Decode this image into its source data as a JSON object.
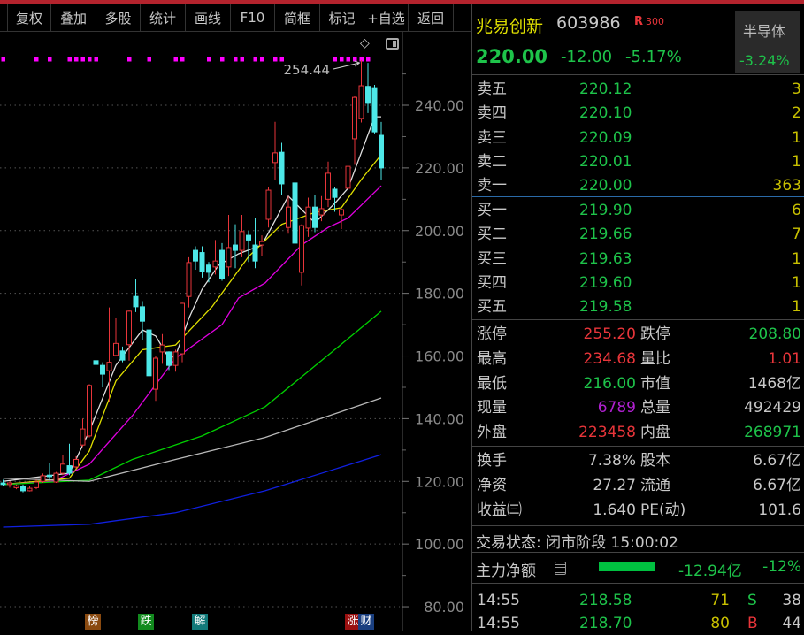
{
  "toolbar": [
    "复权",
    "叠加",
    "多股",
    "统计",
    "画线",
    "F10",
    "简框",
    "标记",
    "+自选",
    "返回"
  ],
  "stock": {
    "name": "兆易创新",
    "code": "603986",
    "tag_r": "R",
    "tag_300": "300",
    "price": "220.00",
    "change": "-12.00",
    "pct": "-5.17%",
    "sector": "半导体",
    "sector_pct": "-3.24%"
  },
  "sell": [
    {
      "label": "卖五",
      "price": "220.12",
      "vol": "3"
    },
    {
      "label": "卖四",
      "price": "220.10",
      "vol": "2"
    },
    {
      "label": "卖三",
      "price": "220.09",
      "vol": "1"
    },
    {
      "label": "卖二",
      "price": "220.01",
      "vol": "1"
    },
    {
      "label": "卖一",
      "price": "220.00",
      "vol": "363"
    }
  ],
  "buy": [
    {
      "label": "买一",
      "price": "219.90",
      "vol": "6"
    },
    {
      "label": "买二",
      "price": "219.66",
      "vol": "7"
    },
    {
      "label": "买三",
      "price": "219.63",
      "vol": "1"
    },
    {
      "label": "买四",
      "price": "219.60",
      "vol": "1"
    },
    {
      "label": "买五",
      "price": "219.58",
      "vol": "1"
    }
  ],
  "stats": [
    {
      "l1": "涨停",
      "v1": "255.20",
      "c1": "r",
      "l2": "跌停",
      "v2": "208.80",
      "c2": "g"
    },
    {
      "l1": "最高",
      "v1": "234.68",
      "c1": "r",
      "l2": "量比",
      "v2": "1.01",
      "c2": "r"
    },
    {
      "l1": "最低",
      "v1": "216.00",
      "c1": "g",
      "l2": "市值",
      "v2": "1468亿",
      "c2": "w"
    },
    {
      "l1": "现量",
      "v1": "6789",
      "c1": "p",
      "l2": "总量",
      "v2": "492429",
      "c2": "w"
    },
    {
      "l1": "外盘",
      "v1": "223458",
      "c1": "r",
      "l2": "内盘",
      "v2": "268971",
      "c2": "g"
    }
  ],
  "stats2": [
    {
      "l1": "换手",
      "v1": "7.38%",
      "l2": "股本",
      "v2": "6.67亿"
    },
    {
      "l1": "净资",
      "v1": "27.27",
      "l2": "流通",
      "v2": "6.67亿"
    },
    {
      "l1": "收益㈢",
      "v1": "1.640",
      "l2": "PE(动)",
      "v2": "101.6"
    }
  ],
  "status": "交易状态: 闭市阶段 15:00:02",
  "main_flow": {
    "label": "主力净额",
    "amount": "-12.94亿",
    "pct": "-12%",
    "bar_fraction": 0.12
  },
  "trades": [
    {
      "time": "14:55",
      "price": "218.58",
      "vol": "71",
      "side": "S",
      "count": "38"
    },
    {
      "time": "14:55",
      "price": "218.70",
      "vol": "80",
      "side": "B",
      "count": "44"
    }
  ],
  "badges": [
    {
      "text": "榜",
      "color": "#8a4a10"
    },
    {
      "text": "跌",
      "color": "#128a1e"
    },
    {
      "text": "解",
      "color": "#127a7a"
    },
    {
      "text": "涨",
      "color": "#9a1010"
    },
    {
      "text": "财",
      "color": "#1a3f80"
    }
  ],
  "colors": {
    "up": "#e8353a",
    "down": "#4de8e8",
    "ma5": "#e0e0e0",
    "ma10": "#e0e000",
    "ma20": "#e000e0",
    "ma60": "#00d000",
    "ma120": "#b8b8b8",
    "ma250": "#1020e0",
    "marker": "#ff00ff"
  },
  "chart_data": {
    "type": "candlestick",
    "y_ticks": [
      "240.00",
      "220.00",
      "200.00",
      "180.00",
      "160.00",
      "140.00",
      "120.00",
      "100.00",
      "80.00"
    ],
    "ylim": [
      80,
      240
    ],
    "high_label": "254.44",
    "candles": [
      [
        119.5,
        120.5,
        118.5,
        119
      ],
      [
        119,
        120,
        118,
        119.5
      ],
      [
        118,
        119,
        117.5,
        118.6
      ],
      [
        118.5,
        119,
        116.5,
        117
      ],
      [
        117,
        118.5,
        116.8,
        117.8
      ],
      [
        118,
        120.5,
        117.5,
        119.8
      ],
      [
        120,
        122.5,
        119.5,
        121.8
      ],
      [
        122,
        126,
        120.5,
        121.5
      ],
      [
        119.8,
        123,
        119.5,
        122.6
      ],
      [
        122.6,
        128.5,
        122,
        125.5
      ],
      [
        125,
        132,
        122,
        122.6
      ],
      [
        124.6,
        128,
        124,
        127
      ],
      [
        131.6,
        140,
        131,
        136.7
      ],
      [
        134.5,
        151,
        134,
        150.6
      ],
      [
        158.5,
        172.5,
        148.5,
        157.3
      ],
      [
        157,
        158,
        150,
        154.2
      ],
      [
        155.3,
        175.5,
        145.5,
        158
      ],
      [
        160.2,
        172,
        160,
        164
      ],
      [
        161.6,
        163,
        158,
        158.7
      ],
      [
        163.6,
        174.5,
        158.5,
        174.3
      ],
      [
        179,
        184.5,
        174,
        175.7
      ],
      [
        175.7,
        177.5,
        165,
        171.1
      ],
      [
        168.3,
        168.5,
        153.7,
        153.7
      ],
      [
        149.4,
        160,
        145.7,
        159.3
      ],
      [
        161.3,
        167,
        157.5,
        163.5
      ],
      [
        161.3,
        161.5,
        155.5,
        157
      ],
      [
        157,
        162,
        155,
        161.3
      ],
      [
        160.7,
        177,
        158,
        176.8
      ],
      [
        179,
        191.5,
        175.5,
        189.8
      ],
      [
        193.7,
        195,
        187.5,
        190.3
      ],
      [
        193,
        195,
        185,
        187
      ],
      [
        189,
        190,
        183.5,
        186.7
      ],
      [
        188.4,
        197,
        186,
        190.3
      ],
      [
        193.7,
        196,
        184,
        184.7
      ],
      [
        188.4,
        205,
        185.5,
        194.6
      ],
      [
        195.4,
        202,
        188,
        193.7
      ],
      [
        193.7,
        205,
        191.5,
        199.7
      ],
      [
        198.5,
        200,
        190,
        197
      ],
      [
        195.4,
        204,
        188,
        190.3
      ],
      [
        195.4,
        198.5,
        192,
        196.5
      ],
      [
        203.6,
        214,
        201,
        212.9
      ],
      [
        221.7,
        234.7,
        216,
        224.8
      ],
      [
        225,
        228,
        211.5,
        214.9
      ],
      [
        201,
        211,
        199,
        207.5
      ],
      [
        215.2,
        217.5,
        190.5,
        196
      ],
      [
        186.7,
        202,
        182.5,
        201.6
      ],
      [
        200.8,
        210.5,
        198,
        207.5
      ],
      [
        207.5,
        211.5,
        199.5,
        201
      ],
      [
        205,
        211,
        203,
        207
      ],
      [
        210,
        222,
        207.5,
        218.3
      ],
      [
        213.2,
        214,
        206,
        210.6
      ],
      [
        205,
        207,
        200.5,
        206.7
      ],
      [
        213.5,
        223,
        212.5,
        220.5
      ],
      [
        229.3,
        243,
        221,
        242.5
      ],
      [
        235.8,
        254.44,
        234.5,
        246.2
      ],
      [
        246,
        253.5,
        237.5,
        240.6
      ],
      [
        245.6,
        246.5,
        231,
        231.5
      ],
      [
        230.4,
        234.68,
        216,
        220
      ]
    ],
    "ma_lines": [
      {
        "key": "ma5",
        "points": [
          [
            0,
            120
          ],
          [
            10,
            122.6
          ],
          [
            13,
            136
          ],
          [
            17,
            157
          ],
          [
            20,
            165.5
          ],
          [
            21,
            168.3
          ],
          [
            23,
            166.4
          ],
          [
            25,
            159.3
          ],
          [
            26,
            160
          ],
          [
            28,
            172
          ],
          [
            30,
            181.3
          ],
          [
            32.5,
            189
          ],
          [
            35.5,
            192.6
          ],
          [
            39,
            195.4
          ],
          [
            43,
            211
          ],
          [
            47,
            202.5
          ],
          [
            50,
            208.7
          ],
          [
            52,
            213.5
          ],
          [
            56,
            236.3
          ],
          [
            57,
            236.3
          ]
        ]
      },
      {
        "key": "ma10",
        "points": [
          [
            0,
            119
          ],
          [
            10,
            121
          ],
          [
            13,
            129.7
          ],
          [
            17,
            152
          ],
          [
            21,
            162
          ],
          [
            26,
            163.5
          ],
          [
            31.5,
            175.7
          ],
          [
            37,
            191.7
          ],
          [
            42,
            202
          ],
          [
            47,
            205.8
          ],
          [
            51,
            207.3
          ],
          [
            54,
            216.3
          ],
          [
            57,
            224.2
          ]
        ]
      },
      {
        "key": "ma20",
        "points": [
          [
            0,
            119
          ],
          [
            7.5,
            120
          ],
          [
            13,
            125.5
          ],
          [
            19.5,
            141
          ],
          [
            26,
            159.3
          ],
          [
            33,
            170
          ],
          [
            35.5,
            178.5
          ],
          [
            39.5,
            183.3
          ],
          [
            45,
            195.4
          ],
          [
            49,
            201
          ],
          [
            52,
            204
          ],
          [
            57,
            214.3
          ]
        ]
      },
      {
        "key": "ma60",
        "points": [
          [
            0,
            119
          ],
          [
            13,
            120.4
          ],
          [
            19.5,
            127
          ],
          [
            30,
            134.5
          ],
          [
            39.5,
            143.8
          ],
          [
            50,
            162
          ],
          [
            57,
            174.3
          ]
        ]
      },
      {
        "key": "ma120",
        "points": [
          [
            0,
            121
          ],
          [
            13,
            120
          ],
          [
            26,
            127
          ],
          [
            39.5,
            134
          ],
          [
            57,
            146.6
          ]
        ]
      },
      {
        "key": "ma250",
        "points": [
          [
            0,
            105.4
          ],
          [
            13,
            106.3
          ],
          [
            26,
            110
          ],
          [
            39.5,
            117
          ],
          [
            57,
            128.5
          ]
        ]
      }
    ],
    "top_markers": [
      0,
      5,
      7,
      10,
      11,
      12,
      13,
      14,
      19,
      22,
      26,
      27,
      31,
      33,
      35,
      36,
      38,
      39,
      41,
      42,
      50,
      51,
      52,
      53,
      54,
      55
    ]
  }
}
